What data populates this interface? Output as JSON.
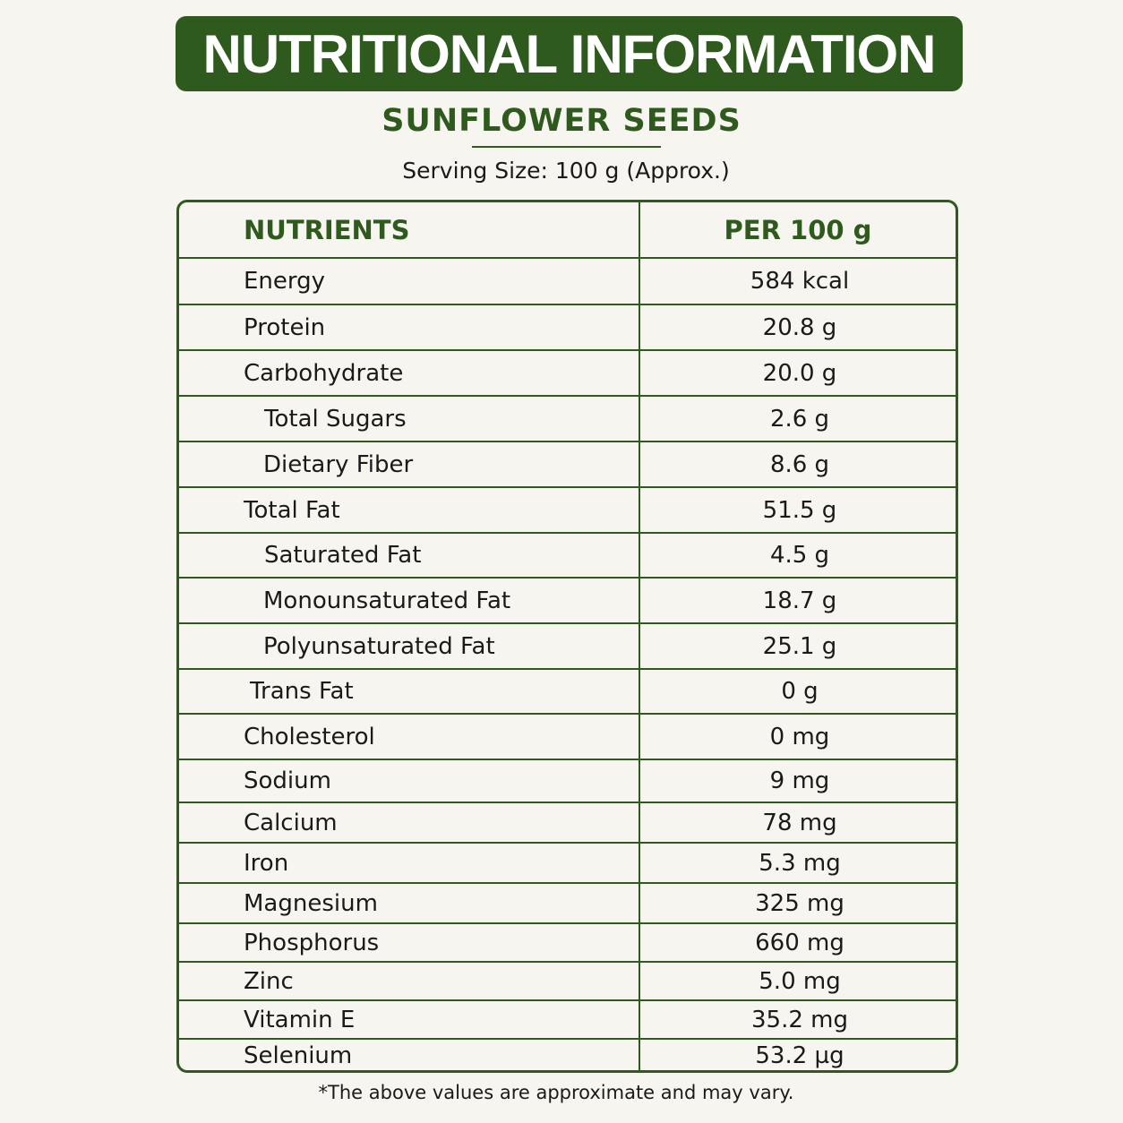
{
  "header": {
    "title": "NUTRITIONAL INFORMATION",
    "subtitle": "SUNFLOWER SEEDS",
    "serving": "Serving Size: 100 g (Approx.)"
  },
  "table": {
    "headers": [
      "NUTRIENTS",
      "PER 100 g"
    ],
    "rows": [
      [
        "Energy",
        "584 kcal"
      ],
      [
        "Protein",
        "20.8 g"
      ],
      [
        "Carbohydrate",
        "20.0 g"
      ],
      [
        "Total Sugars",
        "2.6 g"
      ],
      [
        "Dietary Fiber",
        "8.6 g"
      ],
      [
        "Total Fat",
        "51.5 g"
      ],
      [
        "Saturated Fat",
        "4.5 g"
      ],
      [
        "Monounsaturated Fat",
        "18.7 g"
      ],
      [
        "Polyunsaturated Fat",
        "25.1 g"
      ],
      [
        "Trans Fat",
        "0 g"
      ],
      [
        "Cholesterol",
        "0 mg"
      ],
      [
        "Sodium",
        "9 mg"
      ],
      [
        "Calcium",
        "78 mg"
      ],
      [
        "Iron",
        "5.3 mg"
      ],
      [
        "Magnesium",
        "325 mg"
      ],
      [
        "Phosphorus",
        "660 mg"
      ],
      [
        "Zinc",
        "5.0 mg"
      ],
      [
        "Vitamin E",
        "35.2 mg"
      ],
      [
        "Selenium",
        "53.2 µg"
      ]
    ]
  },
  "footnote": "*The above values are approximate and may vary."
}
